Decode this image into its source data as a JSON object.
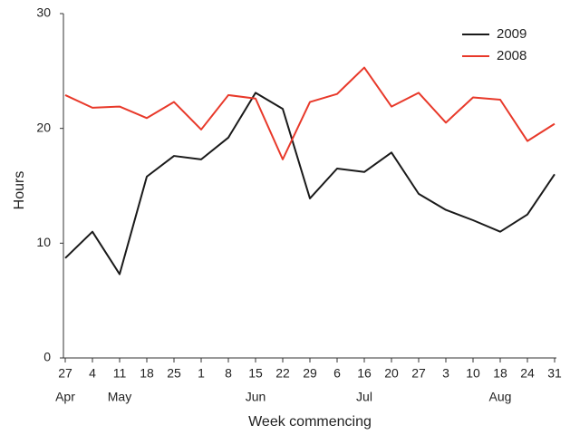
{
  "chart_data": {
    "type": "line",
    "categories": [
      "27",
      "4",
      "11",
      "18",
      "25",
      "1",
      "8",
      "15",
      "22",
      "29",
      "6",
      "16",
      "20",
      "27",
      "3",
      "10",
      "18",
      "24",
      "31"
    ],
    "month_labels": [
      "Apr",
      null,
      "May",
      null,
      null,
      null,
      null,
      "Jun",
      null,
      null,
      null,
      "Jul",
      null,
      null,
      null,
      null,
      "Aug",
      null,
      null
    ],
    "series": [
      {
        "name": "2009",
        "color": "#1a1a1a",
        "values": [
          8.7,
          11.0,
          7.3,
          15.8,
          17.6,
          17.3,
          19.2,
          23.1,
          21.7,
          13.9,
          16.5,
          16.2,
          17.9,
          14.3,
          12.9,
          12.0,
          11.0,
          12.5,
          16.0
        ]
      },
      {
        "name": "2008",
        "color": "#e8392a",
        "values": [
          22.9,
          21.8,
          21.9,
          20.9,
          22.3,
          19.9,
          22.9,
          22.6,
          17.3,
          22.3,
          23.0,
          25.3,
          21.9,
          23.1,
          20.5,
          22.7,
          22.5,
          18.9,
          20.4
        ]
      }
    ],
    "xlabel": "Week commencing",
    "ylabel": "Hours",
    "ylim": [
      0,
      30
    ],
    "yticks": [
      0,
      10,
      20,
      30
    ],
    "grid": false,
    "legend": "top-right"
  }
}
